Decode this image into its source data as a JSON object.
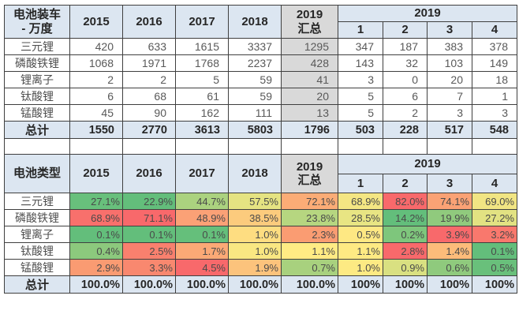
{
  "colors": {
    "header_bg": "#dce6f1",
    "summary_gray_bg": "#d9d9d9",
    "total_bg": "#dce6f1",
    "border": "#3f3f3f",
    "header_text": "#262626",
    "value_text": "#595959",
    "heat_red": "#f8696b",
    "heat_yellow": "#ffeb84",
    "heat_green": "#63be7b"
  },
  "tables": [
    {
      "id": "battery-install-table",
      "corner_lines": [
        "电池装车",
        "- 万度"
      ],
      "years": [
        "2015",
        "2016",
        "2017",
        "2018"
      ],
      "summary_lines": [
        "2019",
        "汇总"
      ],
      "group_header": "2019",
      "months": [
        "1",
        "2",
        "3",
        "4"
      ],
      "summary_col_gray": true,
      "cell_type": "val",
      "rows": [
        {
          "label": "三元锂",
          "values": [
            "420",
            "633",
            "1615",
            "3337",
            "1295",
            "347",
            "187",
            "383",
            "378"
          ]
        },
        {
          "label": "磷酸铁锂",
          "values": [
            "1068",
            "1971",
            "1768",
            "2237",
            "428",
            "143",
            "32",
            "103",
            "149"
          ]
        },
        {
          "label": "锂离子",
          "values": [
            "2",
            "2",
            "5",
            "59",
            "41",
            "3",
            "0",
            "20",
            "18"
          ]
        },
        {
          "label": "钛酸锂",
          "values": [
            "6",
            "68",
            "61",
            "59",
            "20",
            "5",
            "6",
            "7",
            "1"
          ]
        },
        {
          "label": "锰酸锂",
          "values": [
            "45",
            "90",
            "162",
            "111",
            "13",
            "5",
            "2",
            "3",
            "3"
          ]
        }
      ],
      "total": {
        "label": "总计",
        "values": [
          "1550",
          "2770",
          "3613",
          "5803",
          "1796",
          "503",
          "228",
          "517",
          "548"
        ]
      }
    },
    {
      "id": "battery-type-share-table",
      "corner_lines": [
        "电池类型"
      ],
      "years": [
        "2015",
        "2016",
        "2017",
        "2018"
      ],
      "summary_lines": [
        "2019",
        "汇总"
      ],
      "group_header": "2019",
      "months": [
        "1",
        "2",
        "3",
        "4"
      ],
      "summary_col_gray": false,
      "cell_type": "pct",
      "rows": [
        {
          "label": "三元锂",
          "values": [
            "27.1%",
            "22.9%",
            "44.7%",
            "57.5%",
            "72.1%",
            "68.9%",
            "82.0%",
            "74.1%",
            "69.0%"
          ],
          "cell_colors": [
            "#68c07c",
            "#63be7b",
            "#abd27f",
            "#e5e382",
            "#fbac76",
            "#f4e683",
            "#f8696b",
            "#faa275",
            "#f1e583"
          ]
        },
        {
          "label": "磷酸铁锂",
          "values": [
            "68.9%",
            "71.1%",
            "48.9%",
            "38.5%",
            "23.8%",
            "28.5%",
            "14.2%",
            "19.9%",
            "27.2%"
          ],
          "cell_colors": [
            "#f8706c",
            "#f8696b",
            "#fba176",
            "#fccb7d",
            "#b6d680",
            "#e8e583",
            "#63be7b",
            "#90ca7d",
            "#e2e282"
          ]
        },
        {
          "label": "锂离子",
          "values": [
            "0.1%",
            "0.1%",
            "0.1%",
            "1.0%",
            "2.3%",
            "0.5%",
            "0.2%",
            "3.9%",
            "3.2%"
          ],
          "cell_colors": [
            "#63be7b",
            "#63be7b",
            "#65bf7b",
            "#fedd81",
            "#fa9c72",
            "#fee883",
            "#7ec67c",
            "#f8696b",
            "#f9786d"
          ]
        },
        {
          "label": "钛酸锂",
          "values": [
            "0.4%",
            "2.5%",
            "1.7%",
            "1.0%",
            "1.1%",
            "1.1%",
            "2.8%",
            "1.4%",
            "0.1%"
          ],
          "cell_colors": [
            "#8cc97d",
            "#f9806e",
            "#fba976",
            "#f9e782",
            "#ffeb84",
            "#feea83",
            "#f8696b",
            "#fcbc7a",
            "#63be7b"
          ]
        },
        {
          "label": "锰酸锂",
          "values": [
            "2.9%",
            "3.3%",
            "4.5%",
            "1.9%",
            "0.7%",
            "1.0%",
            "0.9%",
            "0.6%",
            "0.5%"
          ],
          "cell_colors": [
            "#fa9b72",
            "#f9886f",
            "#f8696b",
            "#fcc37c",
            "#a8d17e",
            "#fdea83",
            "#d9e081",
            "#8fca7d",
            "#69c07b"
          ]
        }
      ],
      "total": {
        "label": "总计",
        "values": [
          "100.0%",
          "100.0%",
          "100.0%",
          "100.0%",
          "100.0%",
          "100%",
          "100%",
          "100%",
          "100%"
        ]
      }
    }
  ]
}
